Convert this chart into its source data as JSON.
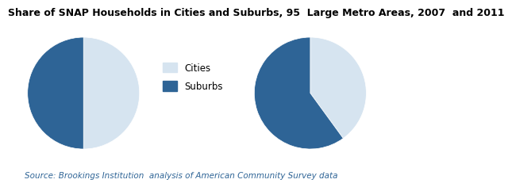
{
  "title": "Share of SNAP Households in Cities and Suburbs, 95  Large Metro Areas, 2007  and 2011",
  "title_fontsize": 9,
  "source_text": "Source: Brookings Institution  analysis of American Community Survey data",
  "pie1_values": [
    50,
    50
  ],
  "pie2_values": [
    40,
    60
  ],
  "colors": [
    "#d6e4f0",
    "#2e6496"
  ],
  "background_color": "#ffffff",
  "legend_labels": [
    "Cities",
    "Suburbs"
  ],
  "startangle": 90
}
